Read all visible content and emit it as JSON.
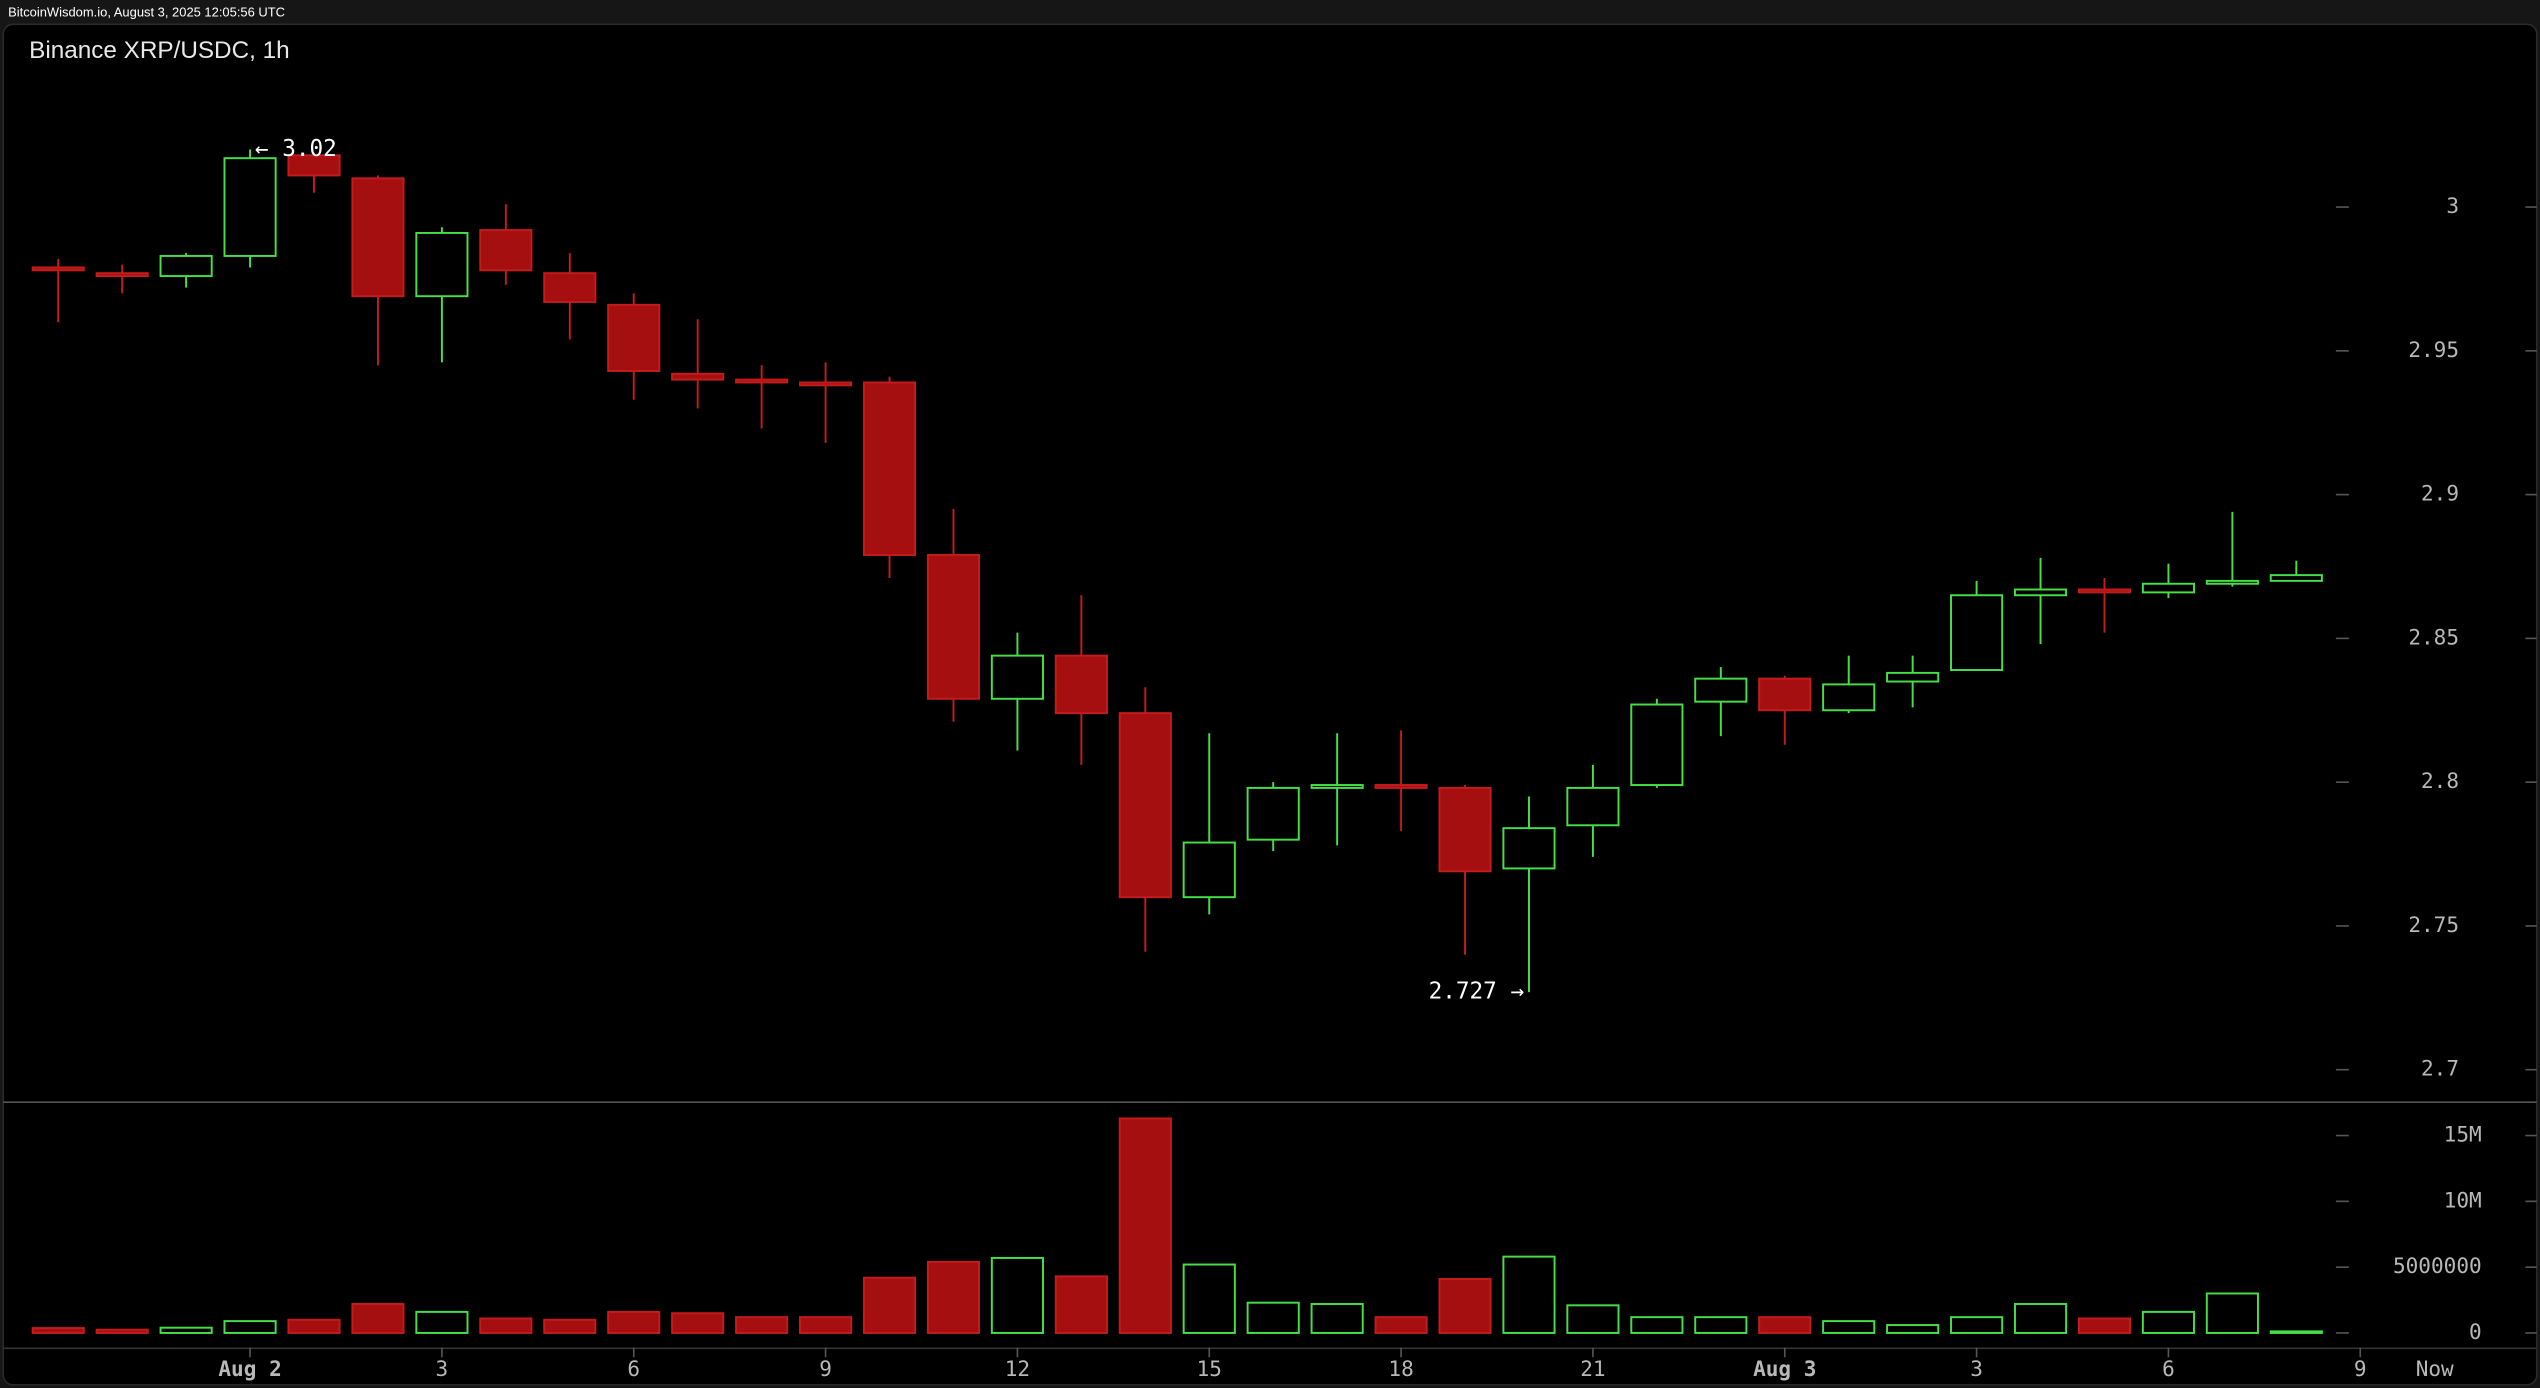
{
  "header": "BitcoinWisdom.io, August 3, 2025 12:05:56 UTC",
  "chart_data": {
    "type": "candlestick",
    "title": "Binance XRP/USDC, 1h",
    "categories": [
      null,
      null,
      null,
      "Aug 2",
      null,
      null,
      "3",
      null,
      null,
      "6",
      null,
      null,
      "9",
      null,
      null,
      "12",
      null,
      null,
      "15",
      null,
      null,
      "18",
      null,
      null,
      "21",
      null,
      null,
      "Aug 3",
      null,
      null,
      "3",
      null,
      null,
      "6",
      null,
      null
    ],
    "x_extra_labels": [
      "9",
      "Now"
    ],
    "open": [
      2.979,
      2.977,
      2.976,
      2.983,
      3.018,
      3.01,
      2.969,
      2.992,
      2.977,
      2.966,
      2.942,
      2.94,
      2.939,
      2.939,
      2.879,
      2.829,
      2.844,
      2.824,
      2.76,
      2.78,
      2.798,
      2.799,
      2.798,
      2.77,
      2.785,
      2.799,
      2.828,
      2.836,
      2.825,
      2.835,
      2.839,
      2.865,
      2.867,
      2.866,
      2.869,
      2.87
    ],
    "high": [
      2.982,
      2.98,
      2.984,
      3.02,
      3.019,
      3.011,
      2.993,
      3.001,
      2.984,
      2.97,
      2.961,
      2.945,
      2.946,
      2.941,
      2.895,
      2.852,
      2.865,
      2.833,
      2.817,
      2.8,
      2.817,
      2.818,
      2.799,
      2.795,
      2.806,
      2.829,
      2.84,
      2.837,
      2.844,
      2.844,
      2.87,
      2.878,
      2.871,
      2.876,
      2.894,
      2.877
    ],
    "low": [
      2.96,
      2.97,
      2.972,
      2.979,
      3.005,
      2.945,
      2.946,
      2.973,
      2.954,
      2.933,
      2.93,
      2.923,
      2.918,
      2.871,
      2.821,
      2.811,
      2.806,
      2.741,
      2.754,
      2.776,
      2.778,
      2.783,
      2.74,
      2.727,
      2.774,
      2.798,
      2.816,
      2.813,
      2.824,
      2.826,
      2.839,
      2.848,
      2.852,
      2.864,
      2.868,
      2.87
    ],
    "close": [
      2.978,
      2.976,
      2.983,
      3.017,
      3.011,
      2.969,
      2.991,
      2.978,
      2.967,
      2.943,
      2.94,
      2.939,
      2.938,
      2.879,
      2.829,
      2.844,
      2.824,
      2.76,
      2.779,
      2.798,
      2.799,
      2.798,
      2.769,
      2.784,
      2.798,
      2.827,
      2.836,
      2.825,
      2.834,
      2.838,
      2.865,
      2.867,
      2.866,
      2.869,
      2.87,
      2.872
    ],
    "volume": [
      370000,
      250000,
      400000,
      900000,
      1000000,
      2200000,
      1600000,
      1100000,
      1000000,
      1600000,
      1500000,
      1200000,
      1200000,
      4200000,
      5400000,
      5700000,
      4300000,
      16300000,
      5200000,
      2300000,
      2200000,
      1200000,
      4100000,
      5800000,
      2100000,
      1200000,
      1200000,
      1200000,
      900000,
      600000,
      1200000,
      2200000,
      1100000,
      1600000,
      3000000,
      120000
    ],
    "up_color": "#46e046",
    "down_color": "#a50f0f",
    "high_label": "← 3.02",
    "low_label": "2.727 →",
    "xlim": [
      -0.86,
      38.76
    ],
    "ylim": [
      2.689,
      3.063
    ],
    "yticks": [
      2.7,
      2.75,
      2.8,
      2.85,
      2.9,
      2.95,
      3
    ],
    "volume_ylim": [
      -860000,
      17600000
    ],
    "volume_yticks": [
      0,
      5000000,
      {
        "value": 10000000,
        "label": "10M"
      },
      {
        "value": 15000000,
        "label": "15M"
      }
    ]
  }
}
